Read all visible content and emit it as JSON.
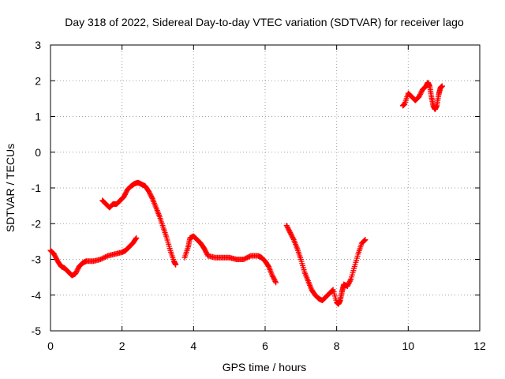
{
  "chart_data": {
    "type": "scatter",
    "title": "Day 318 of 2022, Sidereal Day-to-day VTEC variation (SDTVAR) for receiver lago",
    "xlabel": "GPS time / hours",
    "ylabel": "SDTVAR / TECUs",
    "xlim": [
      0,
      12
    ],
    "ylim": [
      -5,
      3
    ],
    "xticks": [
      "0",
      "2",
      "4",
      "6",
      "8",
      "10",
      "12"
    ],
    "yticks": [
      "-5",
      "-4",
      "-3",
      "-2",
      "-1",
      "0",
      "1",
      "2",
      "3"
    ],
    "grid": true,
    "legend": "none",
    "marker": "+",
    "color": "#ff0000",
    "series": [
      {
        "segments": [
          [
            [
              0.0,
              -2.75
            ],
            [
              0.1,
              -2.85
            ],
            [
              0.2,
              -3.05
            ],
            [
              0.3,
              -3.2
            ],
            [
              0.4,
              -3.25
            ],
            [
              0.5,
              -3.35
            ],
            [
              0.6,
              -3.45
            ],
            [
              0.7,
              -3.4
            ],
            [
              0.8,
              -3.2
            ],
            [
              0.9,
              -3.1
            ],
            [
              1.0,
              -3.05
            ],
            [
              1.2,
              -3.05
            ],
            [
              1.4,
              -3.0
            ],
            [
              1.6,
              -2.9
            ],
            [
              1.8,
              -2.85
            ],
            [
              2.0,
              -2.8
            ],
            [
              2.1,
              -2.75
            ],
            [
              2.2,
              -2.65
            ],
            [
              2.3,
              -2.55
            ],
            [
              2.4,
              -2.4
            ]
          ],
          [
            [
              1.45,
              -1.35
            ],
            [
              1.55,
              -1.45
            ],
            [
              1.65,
              -1.55
            ],
            [
              1.75,
              -1.45
            ],
            [
              1.85,
              -1.45
            ],
            [
              1.95,
              -1.35
            ],
            [
              2.05,
              -1.25
            ],
            [
              2.15,
              -1.05
            ],
            [
              2.25,
              -0.95
            ],
            [
              2.35,
              -0.88
            ],
            [
              2.45,
              -0.85
            ],
            [
              2.55,
              -0.9
            ],
            [
              2.65,
              -0.95
            ],
            [
              2.75,
              -1.1
            ],
            [
              2.85,
              -1.3
            ],
            [
              2.95,
              -1.55
            ],
            [
              3.05,
              -1.8
            ],
            [
              3.15,
              -2.1
            ],
            [
              3.25,
              -2.4
            ],
            [
              3.35,
              -2.75
            ],
            [
              3.45,
              -3.05
            ],
            [
              3.5,
              -3.15
            ]
          ],
          [
            [
              3.75,
              -2.95
            ],
            [
              3.85,
              -2.65
            ],
            [
              3.9,
              -2.4
            ],
            [
              4.0,
              -2.35
            ],
            [
              4.1,
              -2.45
            ],
            [
              4.2,
              -2.55
            ],
            [
              4.3,
              -2.7
            ],
            [
              4.4,
              -2.9
            ],
            [
              4.6,
              -2.95
            ],
            [
              4.8,
              -2.95
            ],
            [
              5.0,
              -2.95
            ],
            [
              5.2,
              -3.0
            ],
            [
              5.4,
              -3.0
            ],
            [
              5.6,
              -2.9
            ],
            [
              5.8,
              -2.9
            ],
            [
              5.9,
              -2.95
            ],
            [
              6.0,
              -3.05
            ],
            [
              6.1,
              -3.2
            ],
            [
              6.2,
              -3.45
            ],
            [
              6.3,
              -3.65
            ]
          ],
          [
            [
              6.6,
              -2.05
            ],
            [
              6.7,
              -2.25
            ],
            [
              6.8,
              -2.45
            ],
            [
              6.9,
              -2.7
            ],
            [
              7.0,
              -3.0
            ],
            [
              7.1,
              -3.35
            ],
            [
              7.2,
              -3.6
            ],
            [
              7.3,
              -3.85
            ],
            [
              7.4,
              -4.0
            ],
            [
              7.5,
              -4.1
            ],
            [
              7.6,
              -4.15
            ],
            [
              7.7,
              -4.05
            ],
            [
              7.8,
              -3.95
            ],
            [
              7.9,
              -3.85
            ],
            [
              8.0,
              -4.2
            ],
            [
              8.05,
              -4.25
            ],
            [
              8.1,
              -4.15
            ],
            [
              8.15,
              -3.9
            ],
            [
              8.2,
              -3.7
            ],
            [
              8.3,
              -3.75
            ],
            [
              8.4,
              -3.55
            ],
            [
              8.5,
              -3.2
            ],
            [
              8.6,
              -2.85
            ],
            [
              8.7,
              -2.55
            ],
            [
              8.8,
              -2.45
            ]
          ],
          [
            [
              9.85,
              1.3
            ],
            [
              9.9,
              1.35
            ],
            [
              10.0,
              1.65
            ],
            [
              10.1,
              1.55
            ],
            [
              10.2,
              1.45
            ],
            [
              10.3,
              1.55
            ],
            [
              10.4,
              1.75
            ],
            [
              10.5,
              1.85
            ],
            [
              10.55,
              1.95
            ],
            [
              10.6,
              1.85
            ],
            [
              10.65,
              1.55
            ],
            [
              10.7,
              1.3
            ],
            [
              10.75,
              1.2
            ],
            [
              10.8,
              1.3
            ],
            [
              10.85,
              1.6
            ],
            [
              10.9,
              1.8
            ],
            [
              10.95,
              1.85
            ]
          ]
        ]
      }
    ]
  }
}
